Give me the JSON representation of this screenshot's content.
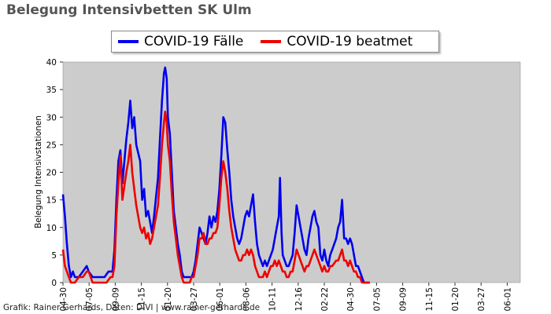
{
  "chart_data": {
    "type": "line",
    "title": "Belegung Intensivbetten SK Ulm",
    "ylabel": "Belegung Intensivstationen",
    "ylim": [
      0,
      40
    ],
    "yticks": [
      0,
      5,
      10,
      15,
      20,
      25,
      30,
      35,
      40
    ],
    "grid": false,
    "legend_position": "top",
    "x_tick_labels": [
      "04-30",
      "07-05",
      "09-09",
      "11-15",
      "01-20",
      "03-27",
      "06-01",
      "08-06",
      "10-11",
      "12-16",
      "02-22",
      "04-30",
      "07-05",
      "09-09",
      "11-15",
      "01-20",
      "03-27",
      "06-01"
    ],
    "x_range": [
      0,
      1155
    ],
    "series": [
      {
        "name": "COVID-19 Fälle",
        "color": "#0000ee",
        "points": [
          [
            0,
            16
          ],
          [
            5,
            12
          ],
          [
            10,
            7
          ],
          [
            15,
            3
          ],
          [
            20,
            1
          ],
          [
            25,
            2
          ],
          [
            30,
            1
          ],
          [
            40,
            1
          ],
          [
            50,
            2
          ],
          [
            60,
            3
          ],
          [
            65,
            2
          ],
          [
            75,
            1
          ],
          [
            85,
            1
          ],
          [
            95,
            1
          ],
          [
            105,
            1
          ],
          [
            115,
            2
          ],
          [
            125,
            2
          ],
          [
            130,
            6
          ],
          [
            135,
            15
          ],
          [
            140,
            22
          ],
          [
            145,
            24
          ],
          [
            150,
            18
          ],
          [
            160,
            26
          ],
          [
            165,
            29
          ],
          [
            170,
            33
          ],
          [
            175,
            28
          ],
          [
            180,
            30
          ],
          [
            185,
            25
          ],
          [
            195,
            22
          ],
          [
            200,
            15
          ],
          [
            205,
            17
          ],
          [
            210,
            12
          ],
          [
            215,
            13
          ],
          [
            220,
            11
          ],
          [
            225,
            9
          ],
          [
            230,
            12
          ],
          [
            240,
            19
          ],
          [
            245,
            26
          ],
          [
            250,
            33
          ],
          [
            255,
            38
          ],
          [
            258,
            39
          ],
          [
            262,
            37
          ],
          [
            265,
            30
          ],
          [
            270,
            27
          ],
          [
            275,
            20
          ],
          [
            280,
            13
          ],
          [
            285,
            10
          ],
          [
            290,
            7
          ],
          [
            295,
            5
          ],
          [
            300,
            2
          ],
          [
            305,
            1
          ],
          [
            315,
            1
          ],
          [
            325,
            1
          ],
          [
            330,
            2
          ],
          [
            335,
            4
          ],
          [
            340,
            7
          ],
          [
            345,
            10
          ],
          [
            350,
            9
          ],
          [
            355,
            8
          ],
          [
            360,
            7
          ],
          [
            365,
            9
          ],
          [
            370,
            12
          ],
          [
            375,
            10
          ],
          [
            380,
            12
          ],
          [
            385,
            11
          ],
          [
            390,
            13
          ],
          [
            395,
            17
          ],
          [
            400,
            23
          ],
          [
            405,
            30
          ],
          [
            410,
            29
          ],
          [
            415,
            24
          ],
          [
            420,
            20
          ],
          [
            425,
            15
          ],
          [
            430,
            12
          ],
          [
            435,
            10
          ],
          [
            440,
            8
          ],
          [
            445,
            7
          ],
          [
            450,
            8
          ],
          [
            455,
            10
          ],
          [
            460,
            12
          ],
          [
            465,
            13
          ],
          [
            470,
            12
          ],
          [
            475,
            14
          ],
          [
            480,
            16
          ],
          [
            485,
            11
          ],
          [
            490,
            7
          ],
          [
            495,
            5
          ],
          [
            500,
            4
          ],
          [
            505,
            3
          ],
          [
            510,
            4
          ],
          [
            515,
            3
          ],
          [
            520,
            4
          ],
          [
            525,
            5
          ],
          [
            530,
            6
          ],
          [
            535,
            8
          ],
          [
            540,
            10
          ],
          [
            545,
            12
          ],
          [
            548,
            19
          ],
          [
            552,
            9
          ],
          [
            555,
            5
          ],
          [
            560,
            4
          ],
          [
            565,
            3
          ],
          [
            570,
            3
          ],
          [
            575,
            4
          ],
          [
            580,
            5
          ],
          [
            585,
            9
          ],
          [
            590,
            14
          ],
          [
            595,
            12
          ],
          [
            600,
            10
          ],
          [
            605,
            8
          ],
          [
            610,
            6
          ],
          [
            615,
            5
          ],
          [
            620,
            8
          ],
          [
            625,
            10
          ],
          [
            630,
            12
          ],
          [
            635,
            13
          ],
          [
            640,
            11
          ],
          [
            645,
            10
          ],
          [
            650,
            5
          ],
          [
            655,
            4
          ],
          [
            660,
            6
          ],
          [
            665,
            4
          ],
          [
            670,
            3
          ],
          [
            675,
            5
          ],
          [
            680,
            6
          ],
          [
            690,
            8
          ],
          [
            695,
            10
          ],
          [
            700,
            11
          ],
          [
            705,
            15
          ],
          [
            710,
            8
          ],
          [
            715,
            8
          ],
          [
            720,
            7
          ],
          [
            725,
            8
          ],
          [
            730,
            7
          ],
          [
            735,
            5
          ],
          [
            740,
            3
          ],
          [
            745,
            3
          ],
          [
            750,
            2
          ],
          [
            755,
            1
          ],
          [
            760,
            0
          ],
          [
            775,
            0
          ]
        ]
      },
      {
        "name": "COVID-19 beatmet",
        "color": "#ee0000",
        "points": [
          [
            0,
            6
          ],
          [
            5,
            3
          ],
          [
            10,
            2
          ],
          [
            15,
            1
          ],
          [
            20,
            0
          ],
          [
            30,
            0
          ],
          [
            40,
            1
          ],
          [
            50,
            1
          ],
          [
            60,
            2
          ],
          [
            65,
            2
          ],
          [
            75,
            0
          ],
          [
            95,
            0
          ],
          [
            110,
            0
          ],
          [
            120,
            1
          ],
          [
            125,
            1
          ],
          [
            130,
            3
          ],
          [
            135,
            12
          ],
          [
            140,
            18
          ],
          [
            145,
            23
          ],
          [
            150,
            15
          ],
          [
            160,
            20
          ],
          [
            165,
            22
          ],
          [
            170,
            25
          ],
          [
            175,
            20
          ],
          [
            180,
            17
          ],
          [
            185,
            14
          ],
          [
            195,
            10
          ],
          [
            200,
            9
          ],
          [
            205,
            10
          ],
          [
            210,
            8
          ],
          [
            215,
            9
          ],
          [
            220,
            7
          ],
          [
            225,
            8
          ],
          [
            230,
            10
          ],
          [
            240,
            14
          ],
          [
            245,
            19
          ],
          [
            250,
            25
          ],
          [
            255,
            29
          ],
          [
            258,
            31
          ],
          [
            262,
            29
          ],
          [
            265,
            25
          ],
          [
            270,
            22
          ],
          [
            275,
            16
          ],
          [
            280,
            11
          ],
          [
            285,
            8
          ],
          [
            290,
            5
          ],
          [
            295,
            3
          ],
          [
            300,
            1
          ],
          [
            305,
            0
          ],
          [
            320,
            0
          ],
          [
            325,
            1
          ],
          [
            330,
            1
          ],
          [
            335,
            3
          ],
          [
            340,
            5
          ],
          [
            345,
            8
          ],
          [
            350,
            8
          ],
          [
            355,
            9
          ],
          [
            360,
            7
          ],
          [
            365,
            7
          ],
          [
            370,
            8
          ],
          [
            375,
            8
          ],
          [
            380,
            9
          ],
          [
            385,
            9
          ],
          [
            390,
            10
          ],
          [
            395,
            14
          ],
          [
            400,
            19
          ],
          [
            405,
            22
          ],
          [
            410,
            20
          ],
          [
            415,
            17
          ],
          [
            420,
            13
          ],
          [
            425,
            10
          ],
          [
            430,
            8
          ],
          [
            435,
            6
          ],
          [
            440,
            5
          ],
          [
            445,
            4
          ],
          [
            450,
            4
          ],
          [
            455,
            5
          ],
          [
            460,
            5
          ],
          [
            465,
            6
          ],
          [
            470,
            5
          ],
          [
            475,
            6
          ],
          [
            480,
            5
          ],
          [
            485,
            3
          ],
          [
            490,
            2
          ],
          [
            495,
            1
          ],
          [
            500,
            1
          ],
          [
            505,
            1
          ],
          [
            510,
            2
          ],
          [
            515,
            1
          ],
          [
            520,
            2
          ],
          [
            525,
            3
          ],
          [
            530,
            3
          ],
          [
            535,
            4
          ],
          [
            540,
            3
          ],
          [
            545,
            4
          ],
          [
            550,
            3
          ],
          [
            555,
            2
          ],
          [
            560,
            2
          ],
          [
            565,
            1
          ],
          [
            570,
            1
          ],
          [
            575,
            2
          ],
          [
            580,
            2
          ],
          [
            585,
            4
          ],
          [
            590,
            6
          ],
          [
            595,
            5
          ],
          [
            600,
            4
          ],
          [
            605,
            3
          ],
          [
            610,
            2
          ],
          [
            615,
            3
          ],
          [
            620,
            3
          ],
          [
            625,
            4
          ],
          [
            630,
            5
          ],
          [
            635,
            6
          ],
          [
            640,
            5
          ],
          [
            645,
            4
          ],
          [
            650,
            3
          ],
          [
            655,
            2
          ],
          [
            660,
            3
          ],
          [
            665,
            2
          ],
          [
            670,
            2
          ],
          [
            675,
            3
          ],
          [
            680,
            3
          ],
          [
            690,
            4
          ],
          [
            695,
            4
          ],
          [
            700,
            5
          ],
          [
            705,
            6
          ],
          [
            710,
            4
          ],
          [
            715,
            4
          ],
          [
            720,
            3
          ],
          [
            725,
            4
          ],
          [
            730,
            3
          ],
          [
            735,
            2
          ],
          [
            740,
            2
          ],
          [
            745,
            1
          ],
          [
            750,
            1
          ],
          [
            755,
            0
          ],
          [
            775,
            0
          ]
        ]
      }
    ]
  },
  "footer": "Grafik: Rainer Gerhards, Daten: DIVI | www.rainer-gerhards.de"
}
